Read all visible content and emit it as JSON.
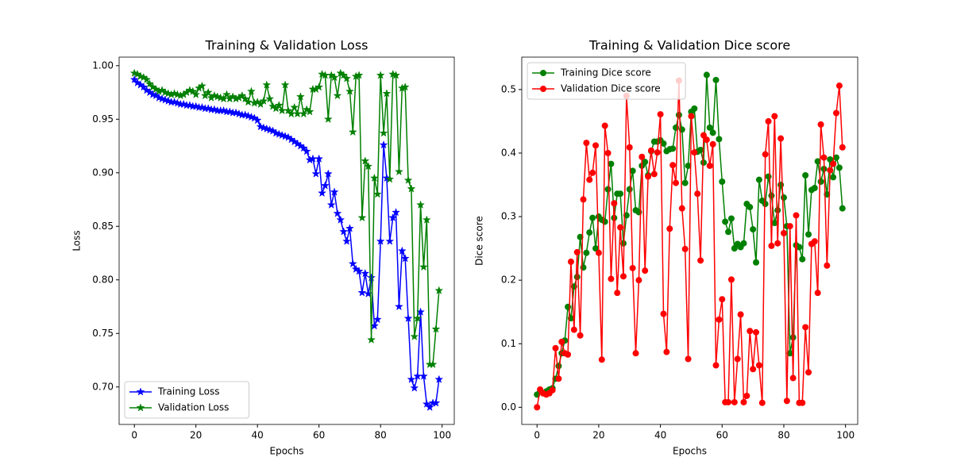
{
  "chart_data": [
    {
      "type": "line",
      "title": "Training & Validation Loss",
      "xlabel": "Epochs",
      "ylabel": "Loss",
      "x": [
        0,
        1,
        2,
        3,
        4,
        5,
        6,
        7,
        8,
        9,
        10,
        11,
        12,
        13,
        14,
        15,
        16,
        17,
        18,
        19,
        20,
        21,
        22,
        23,
        24,
        25,
        26,
        27,
        28,
        29,
        30,
        31,
        32,
        33,
        34,
        35,
        36,
        37,
        38,
        39,
        40,
        41,
        42,
        43,
        44,
        45,
        46,
        47,
        48,
        49,
        50,
        51,
        52,
        53,
        54,
        55,
        56,
        57,
        58,
        59,
        60,
        61,
        62,
        63,
        64,
        65,
        66,
        67,
        68,
        69,
        70,
        71,
        72,
        73,
        74,
        75,
        76,
        77,
        78,
        79,
        80,
        81,
        82,
        83,
        84,
        85,
        86,
        87,
        88,
        89,
        90,
        91,
        92,
        93,
        94,
        95,
        96,
        97,
        98,
        99
      ],
      "xlim": [
        -4.95,
        103.95
      ],
      "xticks": [
        0,
        20,
        40,
        60,
        80,
        100
      ],
      "ylim": [
        0.665,
        1.008
      ],
      "yticks": [
        {
          "value": 0.7,
          "label": "0.70"
        },
        {
          "value": 0.75,
          "label": "0.75"
        },
        {
          "value": 0.8,
          "label": "0.80"
        },
        {
          "value": 0.85,
          "label": "0.85"
        },
        {
          "value": 0.9,
          "label": "0.90"
        },
        {
          "value": 0.95,
          "label": "0.95"
        },
        {
          "value": 1.0,
          "label": "1.00"
        }
      ],
      "legend": "lower left",
      "series": [
        {
          "name": "Training Loss",
          "color": "#0000ff",
          "marker": "star",
          "values": [
            0.987,
            0.984,
            0.982,
            0.98,
            0.977,
            0.975,
            0.973,
            0.972,
            0.97,
            0.969,
            0.968,
            0.967,
            0.966,
            0.966,
            0.965,
            0.964,
            0.964,
            0.963,
            0.963,
            0.962,
            0.962,
            0.961,
            0.961,
            0.96,
            0.96,
            0.959,
            0.959,
            0.958,
            0.958,
            0.958,
            0.957,
            0.957,
            0.956,
            0.956,
            0.955,
            0.954,
            0.954,
            0.953,
            0.952,
            0.951,
            0.949,
            0.943,
            0.942,
            0.941,
            0.94,
            0.939,
            0.937,
            0.936,
            0.935,
            0.934,
            0.933,
            0.931,
            0.929,
            0.927,
            0.925,
            0.923,
            0.92,
            0.912,
            0.913,
            0.899,
            0.913,
            0.881,
            0.888,
            0.899,
            0.87,
            0.882,
            0.862,
            0.856,
            0.845,
            0.836,
            0.848,
            0.815,
            0.81,
            0.808,
            0.788,
            0.806,
            0.787,
            0.802,
            0.757,
            0.763,
            0.836,
            0.926,
            0.895,
            0.836,
            0.858,
            0.863,
            0.775,
            0.827,
            0.82,
            0.764,
            0.707,
            0.699,
            0.71,
            0.77,
            0.71,
            0.684,
            0.681,
            0.685,
            0.685,
            0.707
          ]
        },
        {
          "name": "Validation Loss",
          "color": "#008000",
          "marker": "star",
          "values": [
            0.993,
            0.992,
            0.99,
            0.989,
            0.987,
            0.983,
            0.98,
            0.978,
            0.976,
            0.977,
            0.975,
            0.974,
            0.973,
            0.974,
            0.973,
            0.972,
            0.973,
            0.975,
            0.977,
            0.976,
            0.973,
            0.979,
            0.981,
            0.972,
            0.975,
            0.97,
            0.972,
            0.971,
            0.97,
            0.969,
            0.973,
            0.969,
            0.971,
            0.969,
            0.97,
            0.972,
            0.969,
            0.966,
            0.976,
            0.965,
            0.966,
            0.964,
            0.967,
            0.982,
            0.969,
            0.962,
            0.96,
            0.963,
            0.958,
            0.982,
            0.958,
            0.955,
            0.961,
            0.955,
            0.971,
            0.955,
            0.959,
            0.957,
            0.978,
            0.978,
            0.98,
            0.992,
            0.991,
            0.95,
            0.991,
            0.989,
            0.972,
            0.993,
            0.991,
            0.988,
            0.976,
            0.938,
            0.99,
            0.991,
            0.858,
            0.911,
            0.906,
            0.744,
            0.895,
            0.88,
            0.991,
            0.937,
            0.974,
            0.894,
            0.992,
            0.991,
            0.901,
            0.979,
            0.98,
            0.893,
            0.885,
            0.747,
            0.764,
            0.87,
            0.812,
            0.856,
            0.721,
            0.721,
            0.754,
            0.79
          ]
        }
      ]
    },
    {
      "type": "line",
      "title": "Training & Validation Dice score",
      "xlabel": "Epochs",
      "ylabel": "Dice score",
      "x": [
        0,
        1,
        2,
        3,
        4,
        5,
        6,
        7,
        8,
        9,
        10,
        11,
        12,
        13,
        14,
        15,
        16,
        17,
        18,
        19,
        20,
        21,
        22,
        23,
        24,
        25,
        26,
        27,
        28,
        29,
        30,
        31,
        32,
        33,
        34,
        35,
        36,
        37,
        38,
        39,
        40,
        41,
        42,
        43,
        44,
        45,
        46,
        47,
        48,
        49,
        50,
        51,
        52,
        53,
        54,
        55,
        56,
        57,
        58,
        59,
        60,
        61,
        62,
        63,
        64,
        65,
        66,
        67,
        68,
        69,
        70,
        71,
        72,
        73,
        74,
        75,
        76,
        77,
        78,
        79,
        80,
        81,
        82,
        83,
        84,
        85,
        86,
        87,
        88,
        89,
        90,
        91,
        92,
        93,
        94,
        95,
        96,
        97,
        98,
        99
      ],
      "xlim": [
        -4.95,
        103.95
      ],
      "xticks": [
        0,
        20,
        40,
        60,
        80,
        100
      ],
      "ylim": [
        -0.027,
        0.551
      ],
      "yticks": [
        {
          "value": 0,
          "label": "0.0"
        },
        0.1,
        0.2,
        0.3,
        0.4,
        0.5
      ],
      "legend": "upper left",
      "series": [
        {
          "name": "Training Dice score",
          "color": "#008000",
          "marker": "circle",
          "values": [
            0.02,
            0.025,
            0.022,
            0.025,
            0.028,
            0.03,
            0.045,
            0.065,
            0.085,
            0.105,
            0.158,
            0.14,
            0.19,
            0.205,
            0.268,
            0.22,
            0.243,
            0.275,
            0.298,
            0.25,
            0.3,
            0.295,
            0.292,
            0.343,
            0.383,
            0.298,
            0.336,
            0.336,
            0.258,
            0.302,
            0.343,
            0.372,
            0.31,
            0.307,
            0.38,
            0.386,
            0.365,
            0.403,
            0.418,
            0.418,
            0.42,
            0.415,
            0.403,
            0.406,
            0.407,
            0.44,
            0.46,
            0.437,
            0.353,
            0.38,
            0.465,
            0.47,
            0.402,
            0.405,
            0.385,
            0.523,
            0.44,
            0.432,
            0.515,
            0.422,
            0.355,
            0.292,
            0.276,
            0.297,
            0.25,
            0.257,
            0.252,
            0.258,
            0.32,
            0.315,
            0.28,
            0.228,
            0.358,
            0.325,
            0.32,
            0.363,
            0.333,
            0.29,
            0.31,
            0.35,
            0.33,
            0.285,
            0.085,
            0.11,
            0.255,
            0.252,
            0.233,
            0.365,
            0.272,
            0.342,
            0.345,
            0.387,
            0.355,
            0.375,
            0.335,
            0.39,
            0.362,
            0.393,
            0.377,
            0.313
          ]
        },
        {
          "name": "Validation Dice score",
          "color": "#ff0000",
          "marker": "circle",
          "values": [
            0.0,
            0.028,
            0.022,
            0.02,
            0.022,
            0.027,
            0.093,
            0.045,
            0.103,
            0.085,
            0.083,
            0.229,
            0.122,
            0.244,
            0.113,
            0.327,
            0.416,
            0.358,
            0.369,
            0.412,
            0.243,
            0.075,
            0.443,
            0.4,
            0.202,
            0.321,
            0.18,
            0.283,
            0.206,
            0.49,
            0.409,
            0.219,
            0.085,
            0.2,
            0.394,
            0.215,
            0.363,
            0.404,
            0.367,
            0.401,
            0.461,
            0.147,
            0.087,
            0.281,
            0.381,
            0.353,
            0.514,
            0.313,
            0.249,
            0.076,
            0.458,
            0.401,
            0.336,
            0.231,
            0.428,
            0.421,
            0.38,
            0.414,
            0.066,
            0.138,
            0.17,
            0.008,
            0.008,
            0.201,
            0.008,
            0.076,
            0.146,
            0.008,
            0.018,
            0.12,
            0.06,
            0.118,
            0.066,
            0.007,
            0.398,
            0.45,
            0.254,
            0.458,
            0.258,
            0.423,
            0.274,
            0.01,
            0.285,
            0.046,
            0.302,
            0.007,
            0.007,
            0.126,
            0.055,
            0.257,
            0.261,
            0.18,
            0.445,
            0.393,
            0.223,
            0.373,
            0.383,
            0.463,
            0.506,
            0.409
          ]
        }
      ]
    }
  ]
}
